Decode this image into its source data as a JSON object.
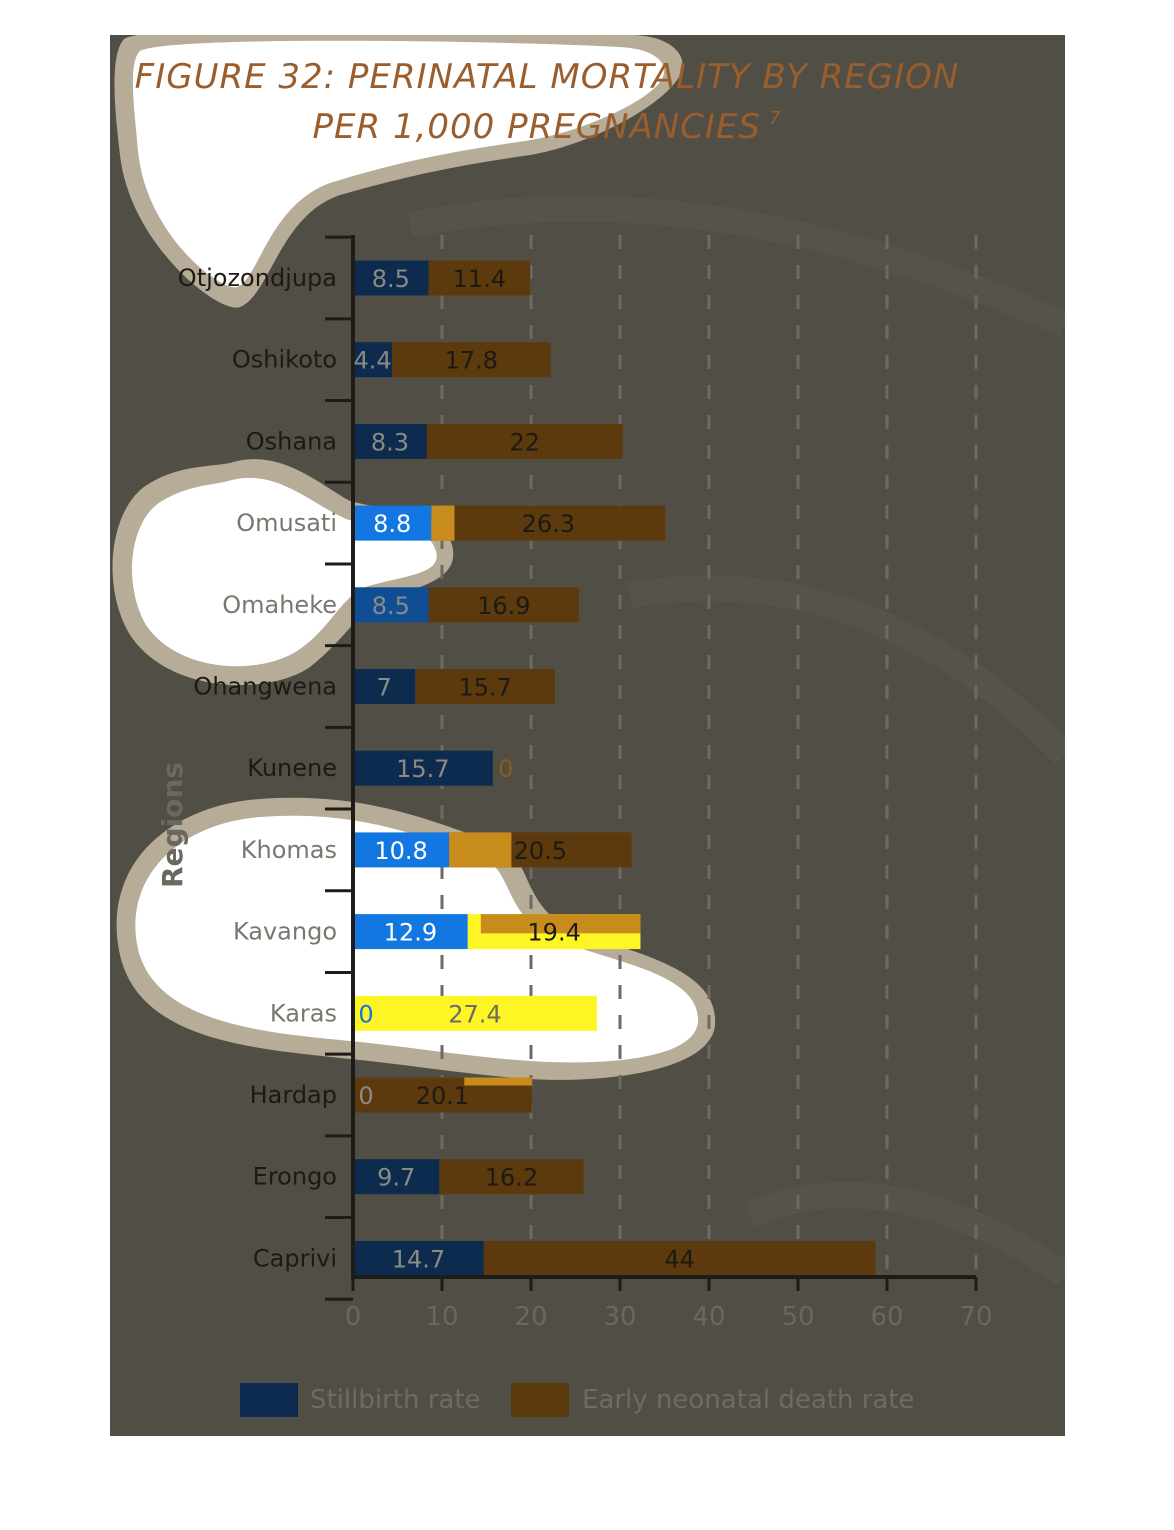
{
  "colors": {
    "background": "#514e46",
    "stillbirth": "#0d2a4f",
    "neonatal": "#5c3a0e",
    "stillbirth_highlight": "#1277e0",
    "neonatal_highlight": "#c88c1c",
    "bright_yellow": "#fdf524",
    "blob_white": "#ffffff",
    "blob_border": "#b6ac98"
  },
  "chart_data": {
    "type": "bar",
    "orientation": "horizontal",
    "stacked": true,
    "title": "FIGURE 32: PERINATAL MORTALITY BY REGION",
    "subtitle": "PER 1,000 PREGNANCIES",
    "title_superscript": "7",
    "xlabel": "",
    "ylabel": "Regions",
    "xlim": [
      0,
      70
    ],
    "xticks": [
      0,
      10,
      20,
      30,
      40,
      50,
      60,
      70
    ],
    "grid": "vertical dashed",
    "legend_position": "bottom",
    "categories": [
      "Otjozondjupa",
      "Oshikoto",
      "Oshana",
      "Omusati",
      "Omaheke",
      "Ohangwena",
      "Kunene",
      "Khomas",
      "Kavango",
      "Karas",
      "Hardap",
      "Erongo",
      "Caprivi"
    ],
    "series": [
      {
        "name": "Stillbirth rate",
        "values": [
          8.5,
          4.4,
          8.3,
          8.8,
          8.5,
          7,
          15.7,
          10.8,
          12.9,
          0,
          0,
          9.7,
          14.7
        ]
      },
      {
        "name": "Early neonatal death rate",
        "values": [
          11.4,
          17.8,
          22,
          26.3,
          16.9,
          15.7,
          0,
          20.5,
          19.4,
          27.4,
          20.1,
          16.2,
          44
        ]
      }
    ]
  }
}
